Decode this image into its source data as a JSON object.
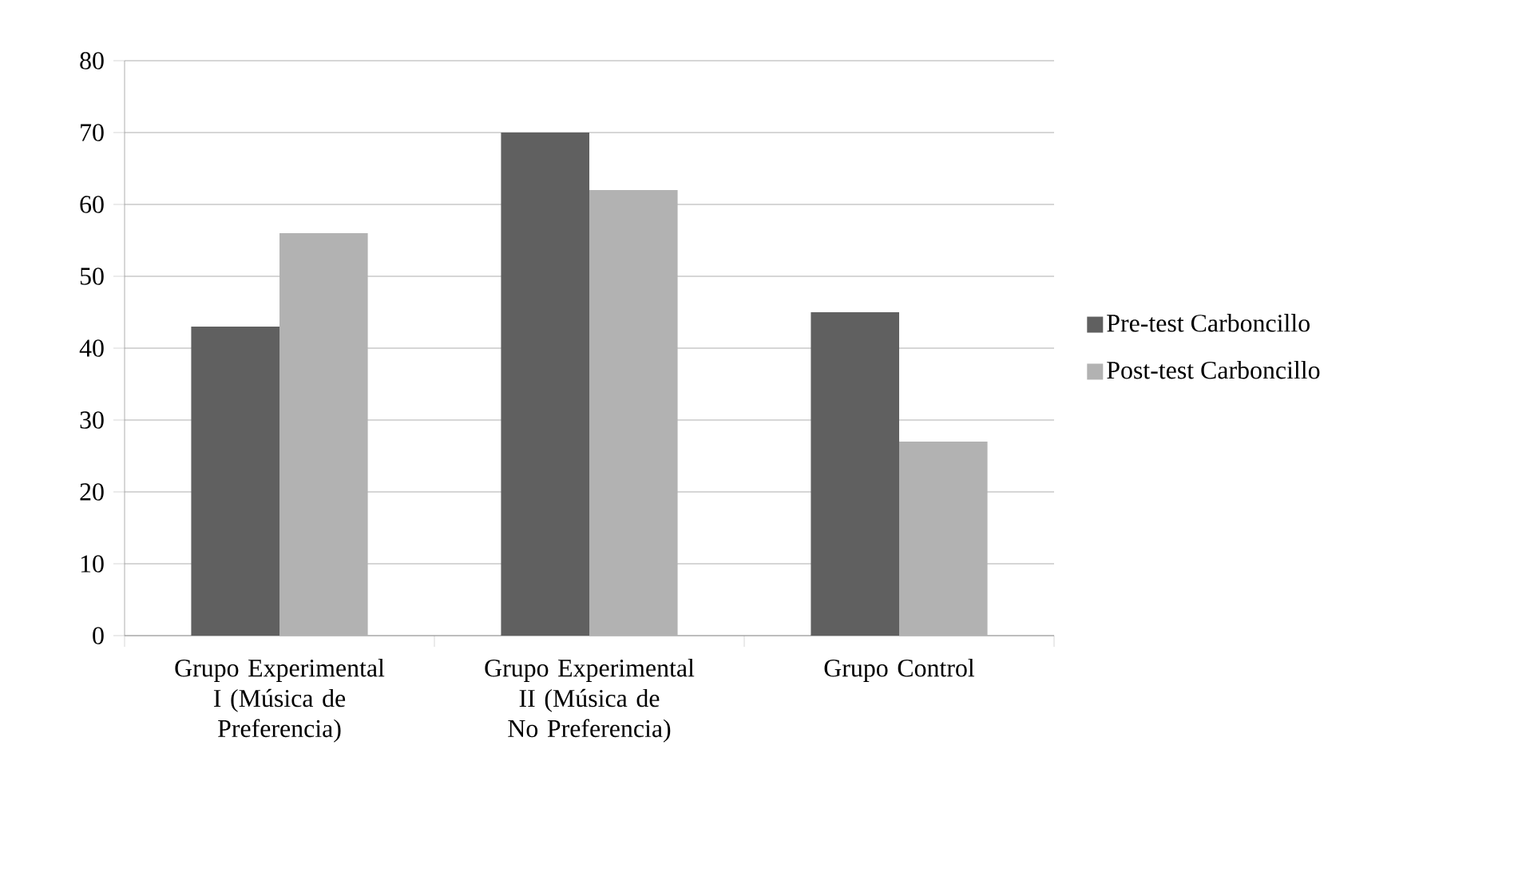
{
  "chart_data": {
    "type": "bar",
    "categories": [
      "Grupo Experimental I (Música de Preferencia)",
      "Grupo Experimental II (Música de No Preferencia)",
      "Grupo Control"
    ],
    "series": [
      {
        "name": "Pre-test Carboncillo",
        "color": "#606060",
        "values": [
          43,
          70,
          45
        ]
      },
      {
        "name": "Post-test Carboncillo",
        "color": "#b2b2b2",
        "values": [
          56,
          62,
          27
        ]
      }
    ],
    "ylim": [
      0,
      80
    ],
    "yticks": [
      0,
      10,
      20,
      30,
      40,
      50,
      60,
      70,
      80
    ],
    "grid": "y",
    "legend": "right"
  }
}
